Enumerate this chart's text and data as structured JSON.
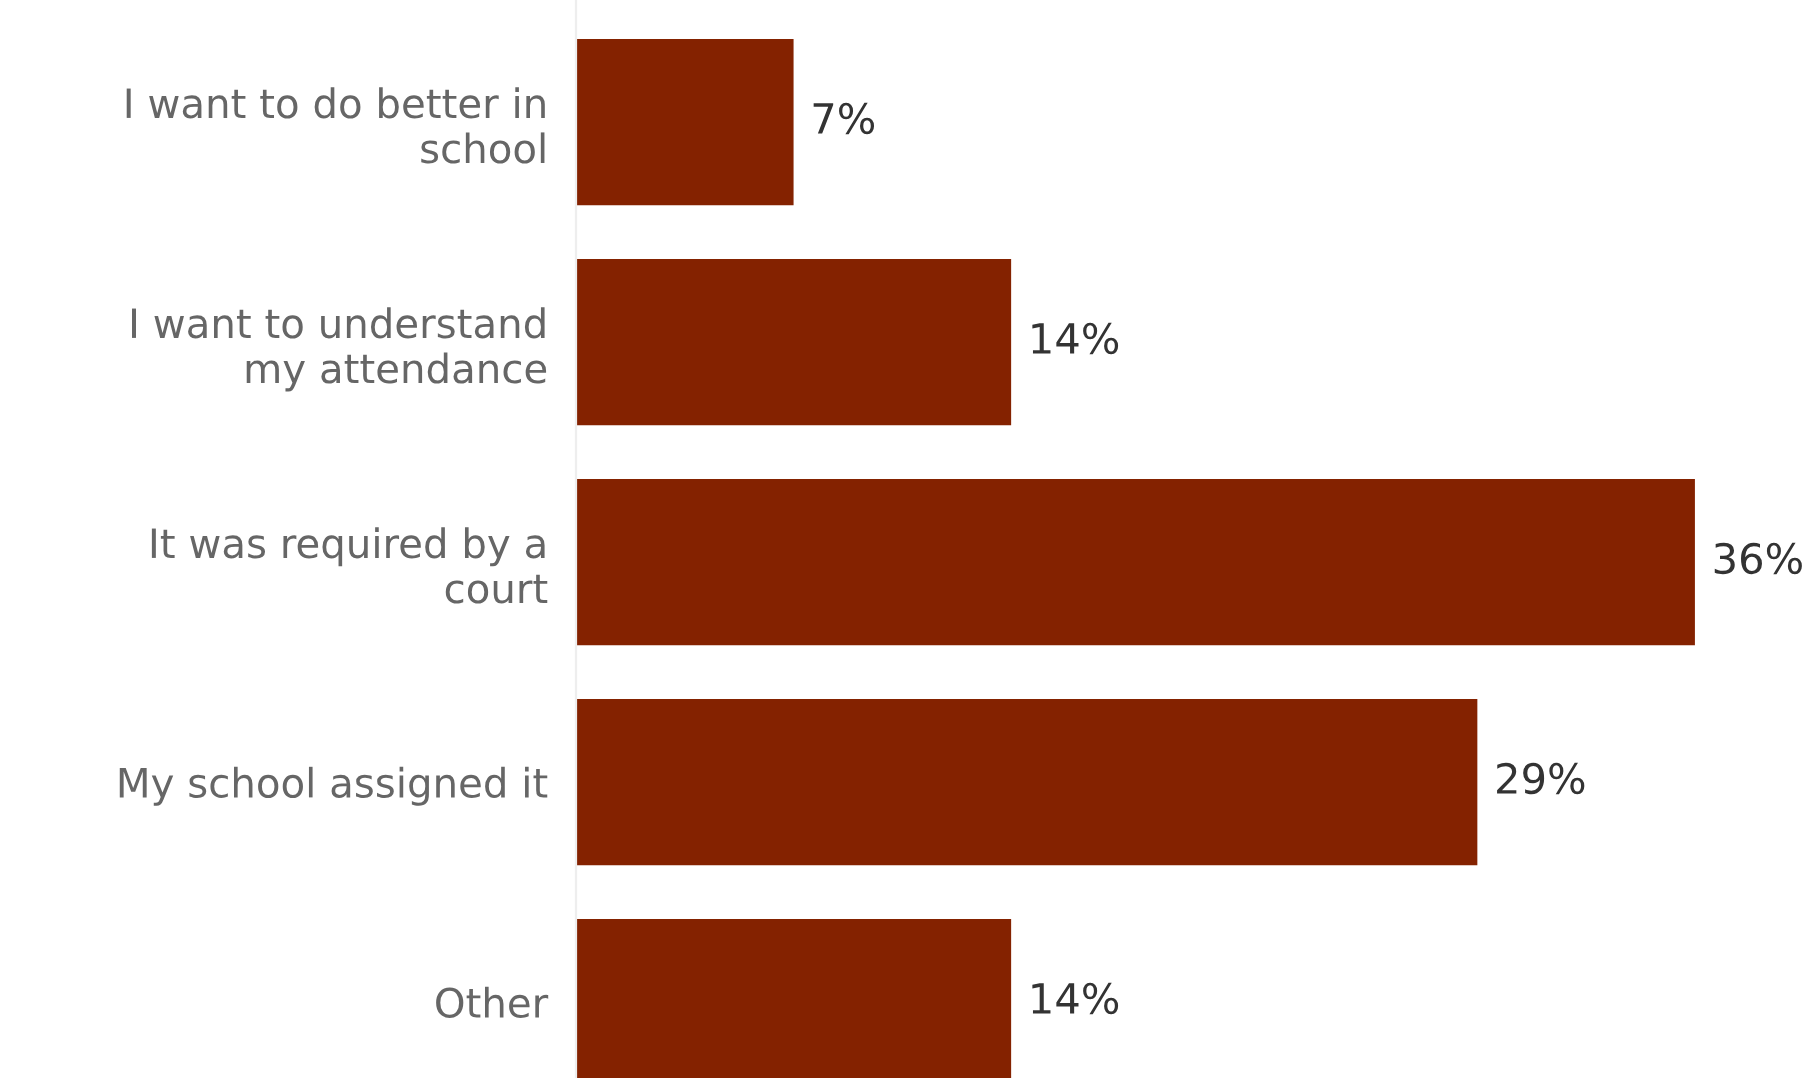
{
  "chart_data": {
    "type": "bar",
    "orientation": "horizontal",
    "categories": [
      "I want to do better in\nschool",
      "I want to understand\nmy attendance",
      "It was required by a\ncourt",
      "My school assigned it",
      "Other"
    ],
    "values": [
      7,
      14,
      36,
      29,
      14
    ],
    "value_labels": [
      "7%",
      "14%",
      "36%",
      "29%",
      "14%"
    ],
    "color": "#842200",
    "grid": false,
    "legend": false
  }
}
